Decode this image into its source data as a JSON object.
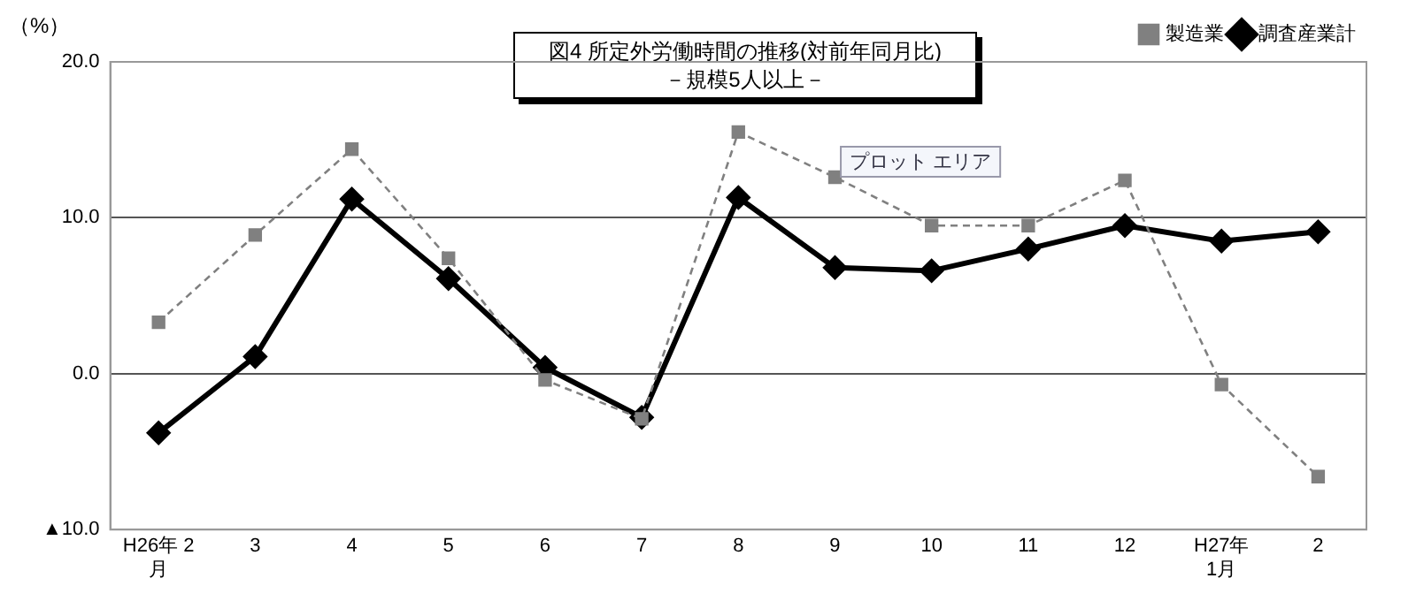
{
  "chart_data": {
    "type": "line",
    "title": "図4  所定外労働時間の推移(対前年同月比)",
    "subtitle": "－規模5人以上－",
    "ylabel": "（%）",
    "categories": [
      "H26年 2\n月",
      "3",
      "4",
      "5",
      "6",
      "7",
      "8",
      "9",
      "10",
      "11",
      "12",
      "H27年\n1月",
      "2"
    ],
    "series": [
      {
        "name": "調査産業計",
        "color": "#000000",
        "marker": "diamond",
        "line_style": "solid",
        "values": [
          -3.8,
          1.1,
          11.2,
          6.1,
          0.4,
          -2.8,
          11.3,
          6.8,
          6.6,
          8.0,
          9.5,
          8.5,
          9.1
        ]
      },
      {
        "name": "製造業",
        "color": "#808080",
        "marker": "square",
        "line_style": "dashed",
        "values": [
          3.3,
          8.9,
          14.4,
          7.4,
          -0.4,
          -2.9,
          15.5,
          12.6,
          9.5,
          9.5,
          12.4,
          -0.7,
          -6.6
        ]
      }
    ],
    "ylim": [
      -10,
      20
    ],
    "yticks": [
      {
        "value": -10,
        "label": "▲10.0"
      },
      {
        "value": 0,
        "label": "0.0"
      },
      {
        "value": 10,
        "label": "10.0"
      },
      {
        "value": 20,
        "label": "20.0"
      }
    ],
    "grid": "y",
    "legend": "top right",
    "annotations": [
      "プロット エリア"
    ]
  }
}
